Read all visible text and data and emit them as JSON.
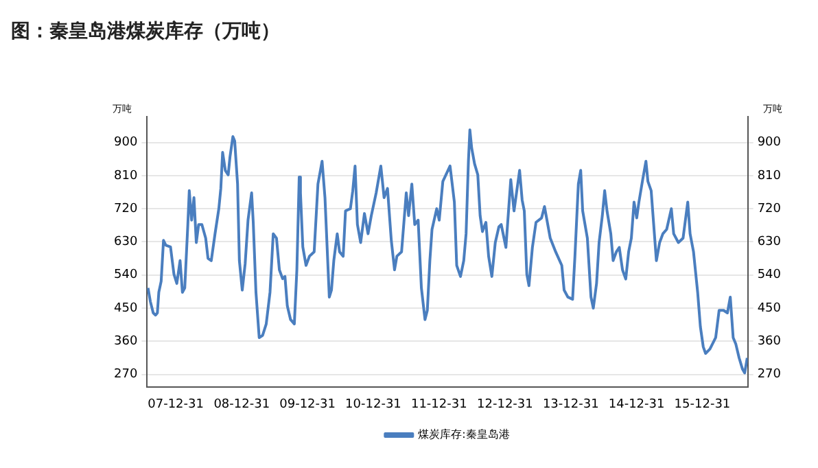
{
  "chart_data": {
    "type": "line",
    "title": "图：秦皇岛港煤炭库存（万吨）",
    "ylabel": "万吨",
    "y2label": "万吨",
    "xlim": [
      "2007-07-25",
      "2016-09-08"
    ],
    "xticks": [
      {
        "value": "2007-12-31",
        "label": "07-12-31"
      },
      {
        "value": "2008-12-31",
        "label": "08-12-31"
      },
      {
        "value": "2009-12-31",
        "label": "09-12-31"
      },
      {
        "value": "2010-12-31",
        "label": "10-12-31"
      },
      {
        "value": "2011-12-31",
        "label": "11-12-31"
      },
      {
        "value": "2012-12-31",
        "label": "12-12-31"
      },
      {
        "value": "2013-12-31",
        "label": "13-12-31"
      },
      {
        "value": "2014-12-31",
        "label": "14-12-31"
      },
      {
        "value": "2015-12-31",
        "label": "15-12-31"
      }
    ],
    "ylim": [
      235,
      970
    ],
    "yticks": [
      270,
      360,
      450,
      540,
      630,
      720,
      810,
      900
    ],
    "y2lim": [
      235,
      970
    ],
    "y2ticks": [
      270,
      360,
      450,
      540,
      630,
      720,
      810,
      900
    ],
    "grid": "y",
    "legend": "bottom",
    "marker": "none",
    "line_style": "solid",
    "series": [
      {
        "name": "煤炭库存:秦皇岛港",
        "color": "#4a7ebf",
        "x": [
          "2007-07-30",
          "2007-08-12",
          "2007-08-28",
          "2007-09-10",
          "2007-09-20",
          "2007-09-28",
          "2007-10-11",
          "2007-10-24",
          "2007-11-06",
          "2007-12-02",
          "2007-12-21",
          "2008-01-06",
          "2008-01-24",
          "2008-02-06",
          "2008-02-19",
          "2008-03-07",
          "2008-03-15",
          "2008-03-28",
          "2008-04-10",
          "2008-04-23",
          "2008-05-06",
          "2008-05-24",
          "2008-06-14",
          "2008-06-27",
          "2008-07-15",
          "2008-08-05",
          "2008-08-26",
          "2008-09-06",
          "2008-09-16",
          "2008-10-01",
          "2008-10-17",
          "2008-10-27",
          "2008-11-12",
          "2008-11-22",
          "2008-12-08",
          "2008-12-18",
          "2009-01-03",
          "2009-01-19",
          "2009-02-04",
          "2009-02-24",
          "2009-03-05",
          "2009-03-20",
          "2009-04-07",
          "2009-04-26",
          "2009-05-16",
          "2009-06-06",
          "2009-06-24",
          "2009-07-12",
          "2009-07-28",
          "2009-08-15",
          "2009-08-28",
          "2009-09-10",
          "2009-09-28",
          "2009-10-19",
          "2009-11-02",
          "2009-11-15",
          "2009-11-22",
          "2009-12-05",
          "2009-12-23",
          "2010-01-11",
          "2010-02-06",
          "2010-02-27",
          "2010-03-22",
          "2010-04-07",
          "2010-05-01",
          "2010-05-13",
          "2010-05-26",
          "2010-06-14",
          "2010-06-27",
          "2010-07-17",
          "2010-07-30",
          "2010-08-26",
          "2010-09-08",
          "2010-09-21",
          "2010-10-04",
          "2010-10-22",
          "2010-11-12",
          "2010-12-02",
          "2010-12-20",
          "2011-01-16",
          "2011-02-11",
          "2011-03-01",
          "2011-03-20",
          "2011-04-10",
          "2011-04-28",
          "2011-05-11",
          "2011-06-06",
          "2011-07-02",
          "2011-07-15",
          "2011-08-02",
          "2011-08-18",
          "2011-09-06",
          "2011-09-24",
          "2011-10-14",
          "2011-10-27",
          "2011-11-10",
          "2011-11-22",
          "2011-12-18",
          "2012-01-01",
          "2012-01-21",
          "2012-03-01",
          "2012-03-25",
          "2012-04-07",
          "2012-04-28",
          "2012-05-16",
          "2012-05-29",
          "2012-06-11",
          "2012-06-19",
          "2012-06-29",
          "2012-07-15",
          "2012-08-02",
          "2012-08-15",
          "2012-08-28",
          "2012-09-16",
          "2012-10-01",
          "2012-10-19",
          "2012-11-07",
          "2012-11-27",
          "2012-12-10",
          "2013-01-05",
          "2013-02-01",
          "2013-02-19",
          "2013-03-22",
          "2013-04-05",
          "2013-04-17",
          "2013-05-01",
          "2013-05-13",
          "2013-06-01",
          "2013-06-21",
          "2013-07-22",
          "2013-08-07",
          "2013-09-08",
          "2013-10-08",
          "2013-11-11",
          "2013-11-24",
          "2013-12-15",
          "2014-01-10",
          "2014-01-23",
          "2014-02-11",
          "2014-02-24",
          "2014-03-07",
          "2014-04-02",
          "2014-04-22",
          "2014-05-05",
          "2014-05-23",
          "2014-06-06",
          "2014-06-24",
          "2014-07-07",
          "2014-07-20",
          "2014-08-10",
          "2014-08-23",
          "2014-09-10",
          "2014-09-26",
          "2014-10-14",
          "2014-11-01",
          "2014-11-17",
          "2014-12-02",
          "2014-12-17",
          "2015-01-01",
          "2015-01-13",
          "2015-02-03",
          "2015-02-21",
          "2015-03-04",
          "2015-03-22",
          "2015-04-20",
          "2015-05-08",
          "2015-05-26",
          "2015-06-16",
          "2015-07-12",
          "2015-07-25",
          "2015-08-20",
          "2015-09-15",
          "2015-10-11",
          "2015-10-24",
          "2015-11-12",
          "2015-12-05",
          "2015-12-20",
          "2016-01-05",
          "2016-01-18",
          "2016-02-11",
          "2016-03-14",
          "2016-04-02",
          "2016-04-27",
          "2016-05-18",
          "2016-06-03",
          "2016-06-19",
          "2016-07-04",
          "2016-07-22",
          "2016-08-10",
          "2016-08-22",
          "2016-09-05"
        ],
        "values": [
          505,
          468,
          437,
          431,
          437,
          493,
          523,
          634,
          621,
          616,
          542,
          517,
          579,
          493,
          505,
          677,
          769,
          689,
          750,
          628,
          677,
          677,
          640,
          585,
          579,
          652,
          720,
          775,
          873,
          824,
          812,
          861,
          916,
          904,
          787,
          579,
          499,
          570,
          689,
          763,
          683,
          493,
          370,
          376,
          407,
          493,
          652,
          640,
          554,
          530,
          536,
          456,
          419,
          407,
          554,
          806,
          763,
          616,
          566,
          591,
          603,
          787,
          849,
          750,
          480,
          499,
          579,
          652,
          603,
          591,
          714,
          720,
          768,
          836,
          677,
          628,
          707,
          652,
          701,
          763,
          836,
          750,
          775,
          634,
          554,
          591,
          603,
          763,
          701,
          787,
          677,
          689,
          505,
          419,
          444,
          579,
          664,
          720,
          689,
          794,
          836,
          738,
          566,
          536,
          579,
          652,
          849,
          934,
          885,
          842,
          812,
          701,
          658,
          683,
          591,
          536,
          628,
          671,
          677,
          615,
          799,
          714,
          824,
          744,
          714,
          542,
          511,
          615,
          683,
          695,
          726,
          640,
          603,
          566,
          499,
          480,
          474,
          591,
          787,
          824,
          714,
          640,
          480,
          450,
          517,
          628,
          701,
          769,
          714,
          652,
          579,
          603,
          615,
          554,
          529,
          603,
          640,
          738,
          695,
          738,
          799,
          849,
          794,
          769,
          579,
          628,
          652,
          664,
          720,
          652,
          628,
          640,
          738,
          652,
          603,
          493,
          400,
          345,
          327,
          339,
          370,
          444,
          444,
          437,
          480,
          370,
          352,
          315,
          284,
          274,
          315
        ]
      }
    ]
  }
}
